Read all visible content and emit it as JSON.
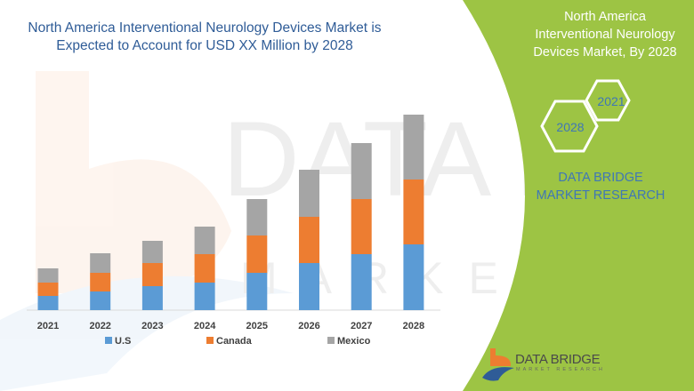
{
  "header": {
    "title": "North America Interventional Neurology Devices Market is Expected to Account for USD XX Million by 2028"
  },
  "panel": {
    "title": "North America Interventional Neurology Devices Market, By 2028",
    "hex_start": "2021",
    "hex_end": "2028",
    "brand": "DATA BRIDGE MARKET RESEARCH",
    "logo_text": "DATA BRIDGE",
    "logo_sub": "MARKET RESEARCH",
    "background_color": "#9dc444"
  },
  "chart_data": {
    "type": "bar",
    "stacked": true,
    "title": "",
    "xlabel": "",
    "ylabel": "",
    "y_axis_shown": false,
    "grid": false,
    "legend_position": "bottom",
    "categories": [
      "2021",
      "2022",
      "2023",
      "2024",
      "2025",
      "2026",
      "2027",
      "2028"
    ],
    "series": [
      {
        "name": "U.S",
        "color": "#5b9bd5",
        "values": [
          16,
          21,
          27,
          31,
          42,
          53,
          63,
          74
        ]
      },
      {
        "name": "Canada",
        "color": "#ed7d31",
        "values": [
          15,
          21,
          26,
          32,
          42,
          52,
          62,
          73
        ]
      },
      {
        "name": "Mexico",
        "color": "#a5a5a5",
        "values": [
          16,
          22,
          25,
          31,
          41,
          53,
          63,
          73
        ]
      }
    ]
  }
}
